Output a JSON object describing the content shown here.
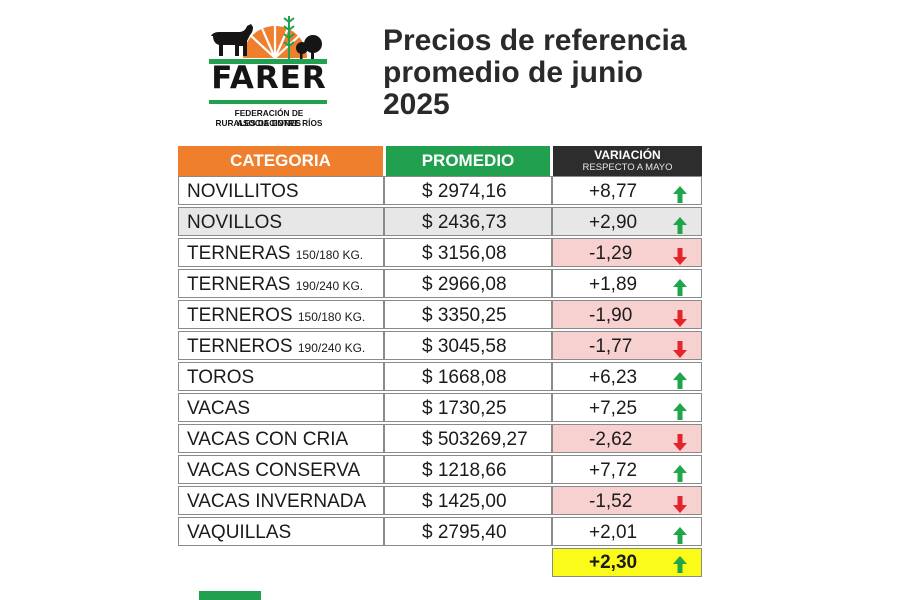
{
  "logo": {
    "word": "FARER",
    "line1": "FEDERACIÓN DE ASOCIACIONES",
    "line2": "RURALES DE ENTRE RÍOS"
  },
  "title": {
    "line1": "Precios de referencia",
    "line2": "promedio de junio",
    "line3": "2025"
  },
  "table": {
    "headers": {
      "categoria": "CATEGORIA",
      "promedio": "PROMEDIO",
      "variacion": "VARIACIÓN",
      "variacion_sub": "RESPECTO A MAYO"
    },
    "rows": [
      {
        "cat": "NOVILLITOS",
        "sub": "",
        "prom": "$ 2974,16",
        "var": "+8,77",
        "dir": "up"
      },
      {
        "cat": "NOVILLOS",
        "sub": "",
        "prom": "$ 2436,73",
        "var": "+2,90",
        "dir": "up"
      },
      {
        "cat": "TERNERAS",
        "sub": "150/180 KG.",
        "prom": "$ 3156,08",
        "var": "-1,29",
        "dir": "down"
      },
      {
        "cat": "TERNERAS",
        "sub": "190/240 KG.",
        "prom": "$ 2966,08",
        "var": "+1,89",
        "dir": "up"
      },
      {
        "cat": "TERNEROS",
        "sub": "150/180 KG.",
        "prom": "$ 3350,25",
        "var": "-1,90",
        "dir": "down"
      },
      {
        "cat": "TERNEROS",
        "sub": "190/240 KG.",
        "prom": "$ 3045,58",
        "var": "-1,77",
        "dir": "down"
      },
      {
        "cat": "TOROS",
        "sub": "",
        "prom": "$ 1668,08",
        "var": "+6,23",
        "dir": "up"
      },
      {
        "cat": "VACAS",
        "sub": "",
        "prom": "$ 1730,25",
        "var": "+7,25",
        "dir": "up"
      },
      {
        "cat": "VACAS CON CRIA",
        "sub": "",
        "prom": "$ 503269,27",
        "var": "-2,62",
        "dir": "down"
      },
      {
        "cat": "VACAS CONSERVA",
        "sub": "",
        "prom": "$ 1218,66",
        "var": "+7,72",
        "dir": "up"
      },
      {
        "cat": "VACAS INVERNADA",
        "sub": "",
        "prom": "$ 1425,00",
        "var": "-1,52",
        "dir": "down"
      },
      {
        "cat": "VAQUILLAS",
        "sub": "",
        "prom": "$ 2795,40",
        "var": "+2,01",
        "dir": "up"
      }
    ],
    "total": {
      "var": "+2,30",
      "dir": "up"
    }
  },
  "colors": {
    "orange": "#f07f2d",
    "green": "#21a150",
    "dark": "#2d2d2d",
    "negative_bg": "#f7d0d0",
    "total_bg": "#fbfb1a",
    "arrow_up": "#1fa64a",
    "arrow_down": "#e3242b"
  },
  "icons": {
    "up": "arrow-up-icon",
    "down": "arrow-down-icon"
  }
}
